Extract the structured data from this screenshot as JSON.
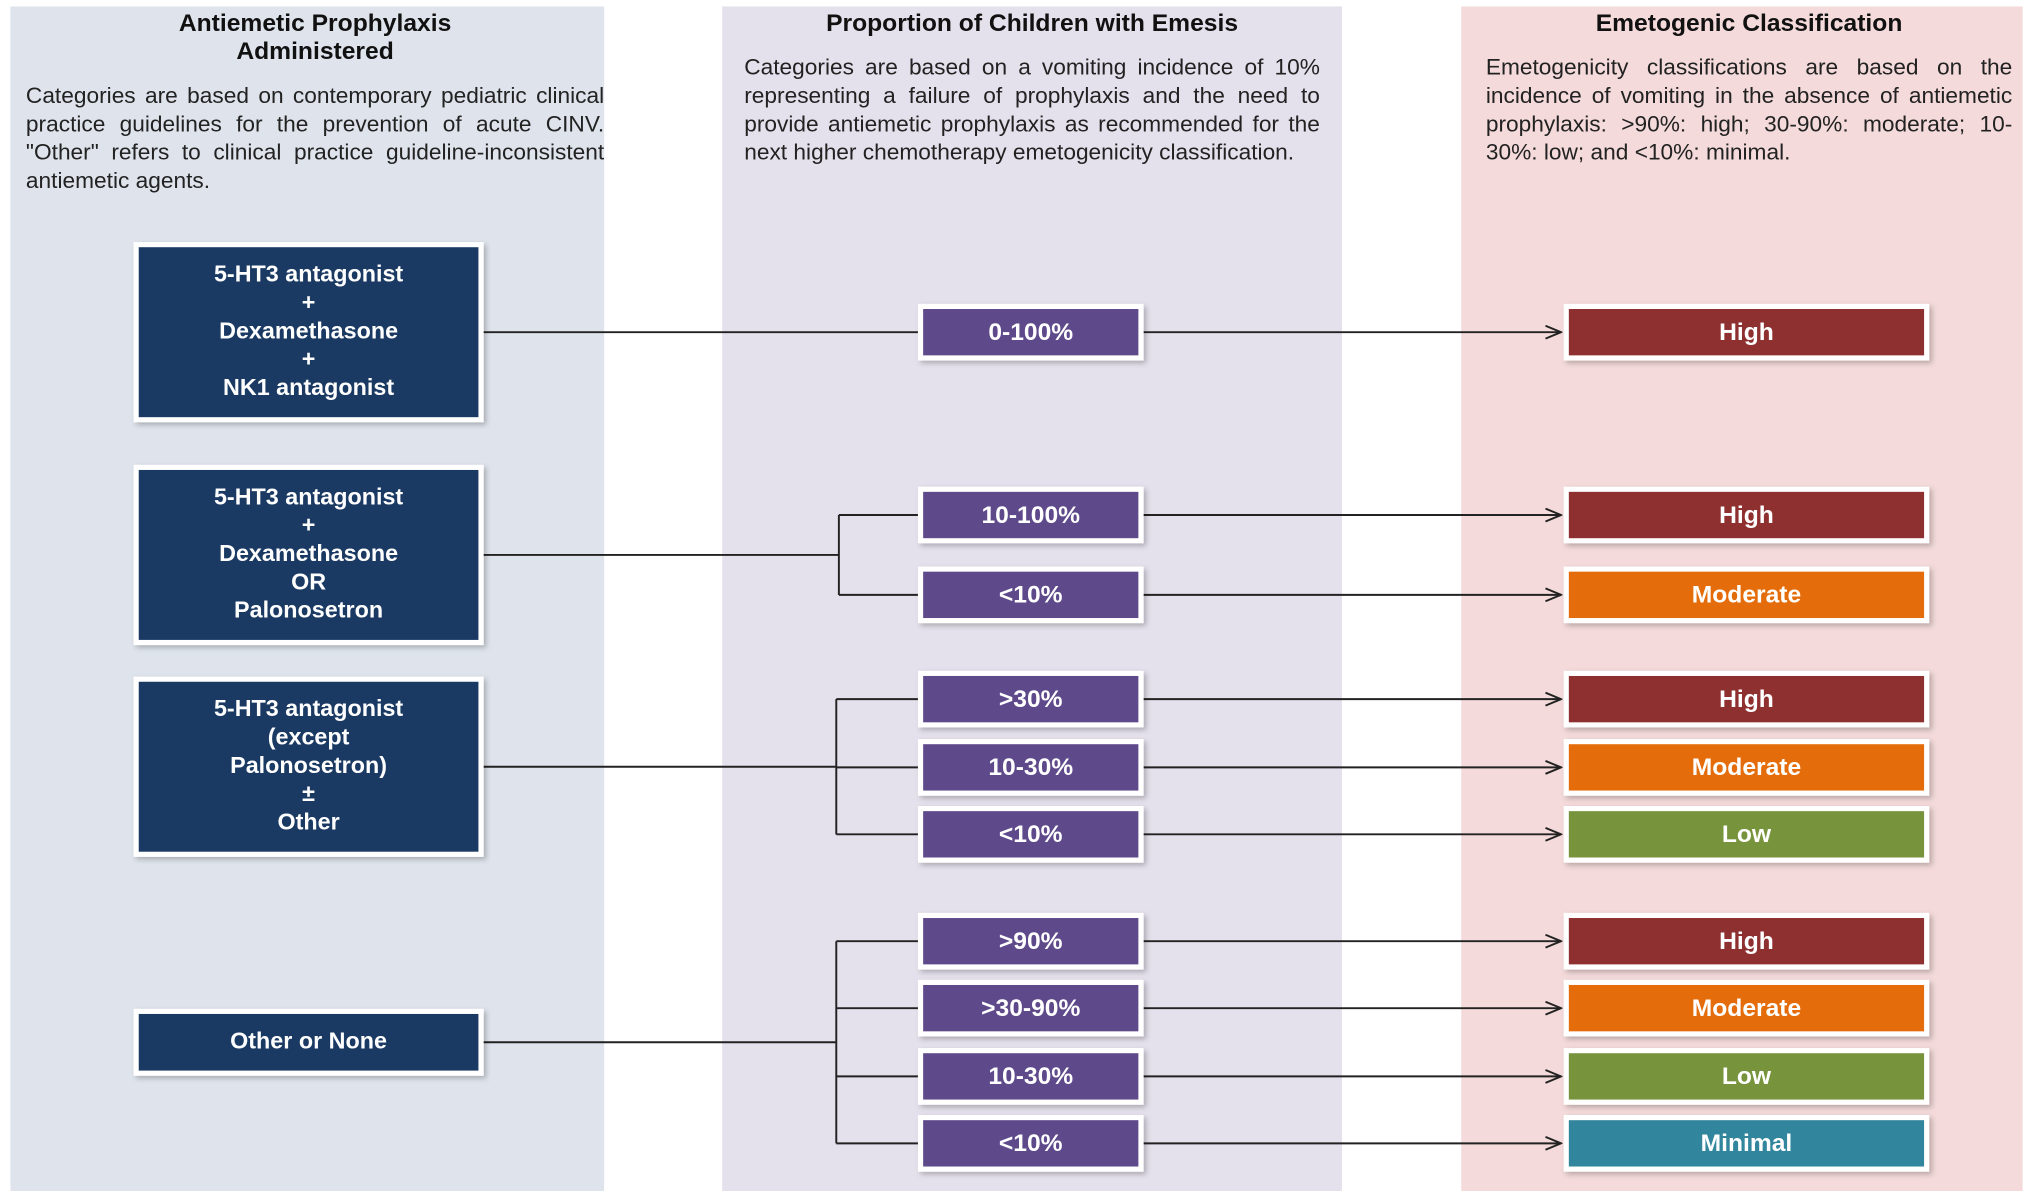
{
  "columns": [
    {
      "title": "Antiemetic Prophylaxis Administered",
      "description": "Categories are based on contemporary pediatric clinical practice guidelines for the prevention of acute CINV. \"Other\" refers to clinical practice guideline-inconsistent antiemetic agents."
    },
    {
      "title": "Proportion of Children with Emesis",
      "description": "Categories are based on a vomiting incidence of 10% representing a failure of prophylaxis and the need to provide antiemetic prophylaxis as recommended for the next higher chemotherapy emetogenicity classification."
    },
    {
      "title": "Emetogenic Classification",
      "description": "Emetogenicity classifications are based on the incidence of vomiting in the absence of antiemetic prophylaxis: >90%: high; 30-90%: moderate; 10-30%: low; and <10%: minimal."
    }
  ],
  "regimens": [
    {
      "lines": [
        "5-HT3 antagonist",
        "+",
        "Dexamethasone",
        "+",
        "NK1 antagonist"
      ],
      "outcomes": [
        {
          "proportion": "0-100%",
          "classification": "High",
          "color": "#8e2f30"
        }
      ]
    },
    {
      "lines": [
        "5-HT3 antagonist",
        "+",
        "Dexamethasone",
        "OR",
        "Palonosetron"
      ],
      "outcomes": [
        {
          "proportion": "10-100%",
          "classification": "High",
          "color": "#8e2f30"
        },
        {
          "proportion": "<10%",
          "classification": "Moderate",
          "color": "#e46c0a"
        }
      ]
    },
    {
      "lines": [
        "5-HT3 antagonist",
        "(except",
        "Palonosetron)",
        "±",
        "Other"
      ],
      "outcomes": [
        {
          "proportion": ">30%",
          "classification": "High",
          "color": "#8e2f30"
        },
        {
          "proportion": "10-30%",
          "classification": "Moderate",
          "color": "#e46c0a"
        },
        {
          "proportion": "<10%",
          "classification": "Low",
          "color": "#77933c"
        }
      ]
    },
    {
      "lines": [
        "Other or None"
      ],
      "outcomes": [
        {
          "proportion": ">90%",
          "classification": "High",
          "color": "#8e2f30"
        },
        {
          "proportion": ">30-90%",
          "classification": "Moderate",
          "color": "#e46c0a"
        },
        {
          "proportion": "10-30%",
          "classification": "Low",
          "color": "#77933c"
        },
        {
          "proportion": "<10%",
          "classification": "Minimal",
          "color": "#31859c"
        }
      ]
    }
  ]
}
